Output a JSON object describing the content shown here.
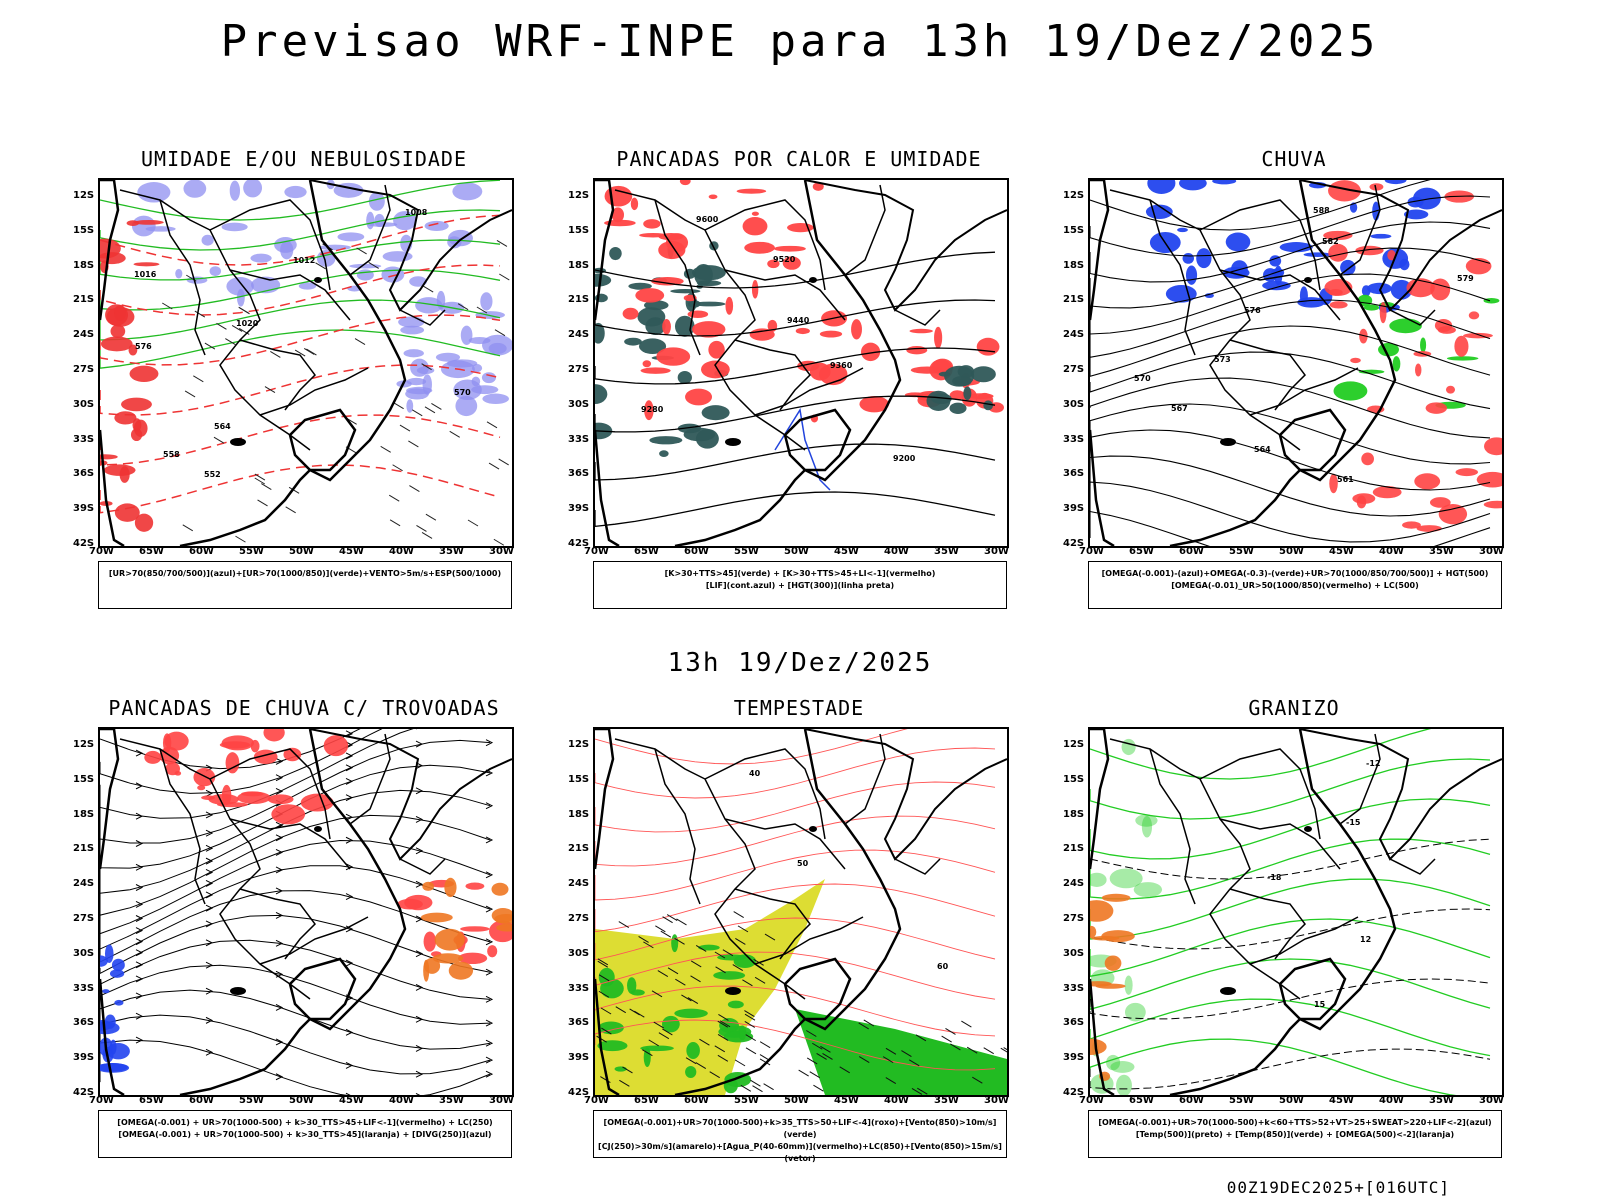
{
  "header": {
    "title": "Previsao WRF-INPE  para 13h 19/Dez/2025",
    "subtitle": "13h 19/Dez/2025",
    "footer": "00Z19DEC2025+[016UTC]"
  },
  "axes": {
    "lat_labels": [
      "12S",
      "15S",
      "18S",
      "21S",
      "24S",
      "27S",
      "30S",
      "33S",
      "36S",
      "39S",
      "42S"
    ],
    "lon_labels": [
      "70W",
      "65W",
      "60W",
      "55W",
      "50W",
      "45W",
      "40W",
      "35W",
      "30W"
    ]
  },
  "panels": [
    {
      "title": "UMIDADE E/OU NEBULOSIDADE",
      "legend": [
        "[UR>70(850/700/500)](azul)+[UR>70(1000/850)](verde)+VENTO>5m/s+ESP(500/1000)"
      ],
      "contour_labels": [
        "1008",
        "1012",
        "1016",
        "1020",
        "576",
        "570",
        "564",
        "558",
        "552"
      ]
    },
    {
      "title": "PANCADAS POR CALOR E UMIDADE",
      "legend": [
        "[K>30+TTS>45](verde) + [K>30+TTS>45+LI<-1](vermelho)",
        "[LIF](cont.azul) + [HGT(300)](linha preta)"
      ],
      "contour_labels": [
        "9600",
        "9520",
        "9440",
        "9360",
        "9280",
        "9200"
      ]
    },
    {
      "title": "CHUVA",
      "legend": [
        "[OMEGA(-0.001)-(azul)+OMEGA(-0.3)-(verde)+UR>70(1000/850/700/500)] + HGT(500)",
        "[OMEGA(-0.01)_UR>50(1000/850)(vermelho) + LC(500)"
      ],
      "contour_labels": [
        "588",
        "582",
        "579",
        "576",
        "573",
        "570",
        "567",
        "564",
        "561"
      ]
    },
    {
      "title": "PANCADAS DE CHUVA C/ TROVOADAS",
      "legend": [
        "[OMEGA(-0.001) + UR>70(1000-500) + k>30_TTS>45+LIF<-1](vermelho) + LC(250)",
        "[OMEGA(-0.001) + UR>70(1000-500) + k>30_TTS>45](laranja) + [DIVG(250)](azul)"
      ],
      "contour_labels": []
    },
    {
      "title": "TEMPESTADE",
      "legend": [
        "[OMEGA(-0.001)+UR>70(1000-500)+k>35_TTS>50+LIF<-4](roxo)+[Vento(850)>10m/s](verde)",
        "[CJ(250)>30m/s](amarelo)+[Agua_P(40-60mm)](vermelho)+LC(850)+[Vento(850)>15m/s](vetor)"
      ],
      "contour_labels": [
        "40",
        "50",
        "60"
      ]
    },
    {
      "title": "GRANIZO",
      "legend": [
        "[OMEGA(-0.001)+UR>70(1000-500)+k<60+TTS>52+VT>25+SWEAT>220+LIF<-2](azul)",
        "[Temp(500)](preto) + [Temp(850)](verde) + [OMEGA(500)<-2](laranja)"
      ],
      "contour_labels": [
        "-12",
        "-15",
        "-18",
        "12",
        "15"
      ]
    }
  ]
}
